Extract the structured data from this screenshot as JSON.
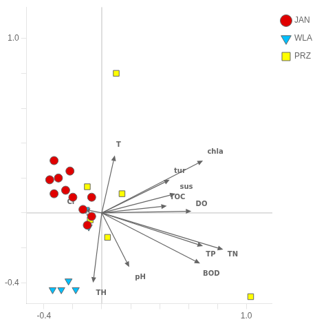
{
  "chart_data": {
    "type": "scatter",
    "xlim": [
      -0.52,
      1.18
    ],
    "ylim": [
      -0.52,
      1.18
    ],
    "xticks": [
      -0.4,
      {
        "value": -0.2,
        "label": null
      },
      {
        "value": 0.0,
        "label": null
      },
      {
        "value": 0.2,
        "label": null
      },
      {
        "value": 0.4,
        "label": null
      },
      {
        "value": 0.6,
        "label": null
      },
      {
        "value": 0.8,
        "label": null
      },
      {
        "value": 1.0,
        "label": "1.0"
      }
    ],
    "yticks": [
      -0.4,
      {
        "value": -0.2,
        "label": null
      },
      {
        "value": 0.0,
        "label": null
      },
      {
        "value": 0.2,
        "label": null
      },
      {
        "value": 0.4,
        "label": null
      },
      {
        "value": 0.6,
        "label": null
      },
      {
        "value": 0.8,
        "label": null
      },
      {
        "value": 1.0,
        "label": "1.0"
      }
    ],
    "grid": false,
    "legend": "right",
    "series": [
      {
        "name": "JAN",
        "color": "#e00000",
        "marker": "circle",
        "values": [
          [
            -0.33,
            0.3
          ],
          [
            -0.22,
            0.24
          ],
          [
            -0.3,
            0.2
          ],
          [
            -0.36,
            0.19
          ],
          [
            -0.25,
            0.13
          ],
          [
            -0.33,
            0.11
          ],
          [
            -0.2,
            0.09
          ],
          [
            -0.07,
            0.09
          ],
          [
            -0.13,
            0.02
          ],
          [
            -0.07,
            -0.02
          ],
          [
            -0.1,
            -0.07
          ]
        ]
      },
      {
        "name": "WLA",
        "color": "#00c0ff",
        "marker": "triangle_down",
        "values": [
          [
            -0.11,
            0.02
          ],
          [
            -0.08,
            -0.02
          ],
          [
            -0.09,
            -0.08
          ],
          [
            -0.23,
            -0.39
          ],
          [
            -0.28,
            -0.44
          ],
          [
            -0.34,
            -0.44
          ],
          [
            -0.18,
            -0.44
          ]
        ]
      },
      {
        "name": "PRZ",
        "color": "#ffff00",
        "marker": "square",
        "values": [
          [
            0.1,
            0.8
          ],
          [
            -0.1,
            0.15
          ],
          [
            0.14,
            0.11
          ],
          [
            -0.08,
            -0.04
          ],
          [
            0.04,
            -0.14
          ],
          [
            1.03,
            -0.48
          ]
        ]
      }
    ],
    "arrows": [
      {
        "label": "T",
        "x": 0.09,
        "y": 0.33,
        "text_x": 0.1,
        "text_y": 0.39
      },
      {
        "label": "Cl",
        "x": -0.12,
        "y": 0.02,
        "text_x": -0.24,
        "text_y": 0.06
      },
      {
        "label": "TH",
        "x": -0.06,
        "y": -0.4,
        "text_x": -0.04,
        "text_y": -0.46
      },
      {
        "label": "pH",
        "x": 0.19,
        "y": -0.31,
        "text_x": 0.23,
        "text_y": -0.37
      },
      {
        "label": "TOC",
        "x": 0.45,
        "y": 0.04,
        "text_x": 0.47,
        "text_y": 0.09
      },
      {
        "label": "DO",
        "x": 0.62,
        "y": 0.01,
        "text_x": 0.65,
        "text_y": 0.05
      },
      {
        "label": "TP",
        "x": 0.7,
        "y": -0.19,
        "text_x": 0.72,
        "text_y": -0.24
      },
      {
        "label": "TN",
        "x": 0.84,
        "y": -0.21,
        "text_x": 0.87,
        "text_y": -0.24
      },
      {
        "label": "BOD",
        "x": 0.68,
        "y": -0.29,
        "text_x": 0.7,
        "text_y": -0.35
      },
      {
        "label": "chla",
        "x": 0.7,
        "y": 0.3,
        "text_x": 0.73,
        "text_y": 0.35
      },
      {
        "label": "tur",
        "x": 0.47,
        "y": 0.19,
        "text_x": 0.5,
        "text_y": 0.24
      },
      {
        "label": "sus",
        "x": 0.51,
        "y": 0.11,
        "text_x": 0.54,
        "text_y": 0.15
      }
    ],
    "reference_lines": {
      "x": [
        0
      ],
      "y": [
        0
      ]
    }
  }
}
